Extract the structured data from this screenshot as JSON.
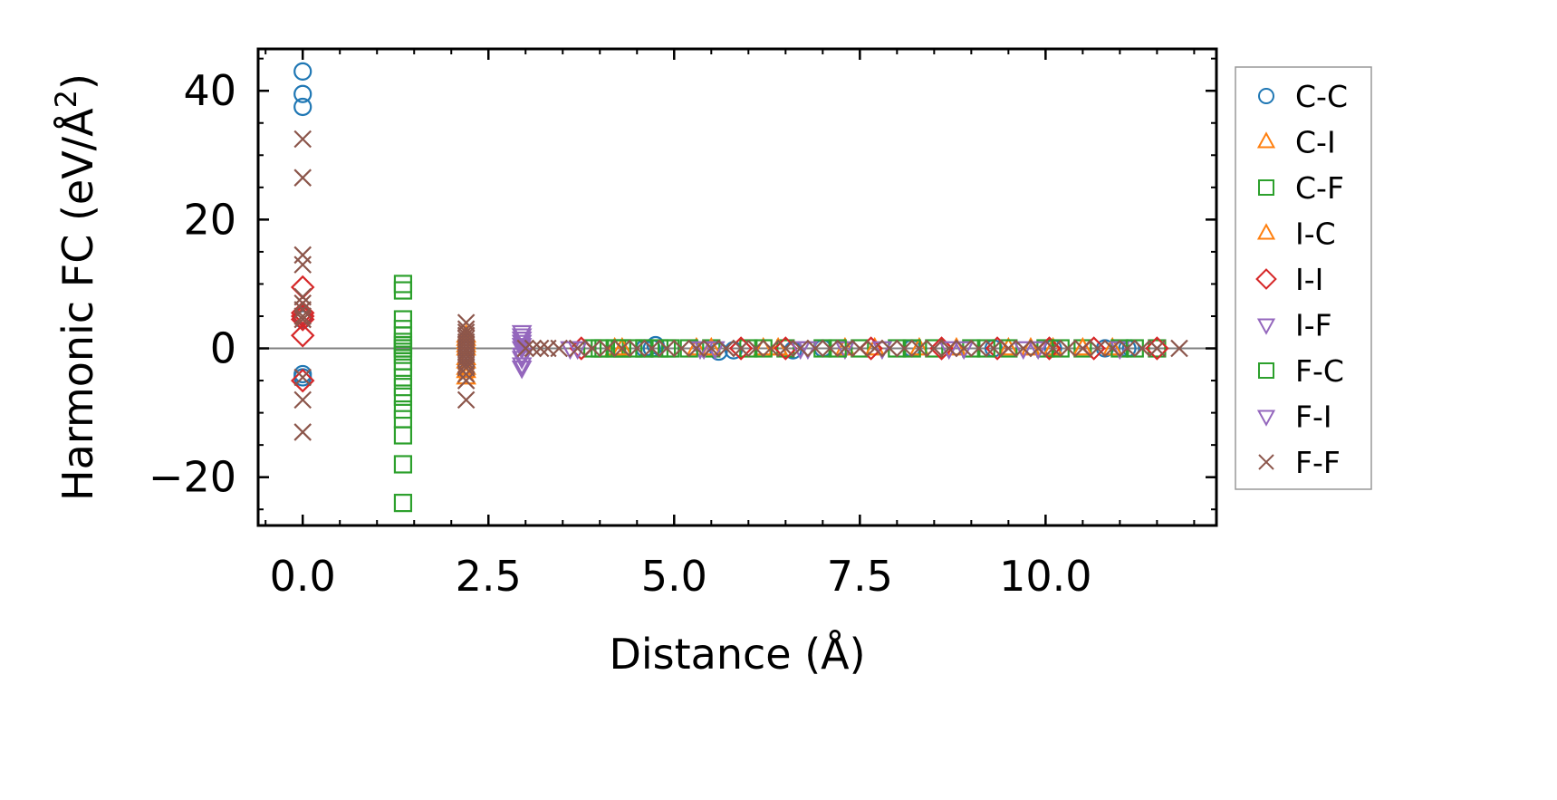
{
  "chart_data": {
    "type": "scatter",
    "xlabel": "Distance (Å)",
    "ylabel": "Harmonic FC (eV/Å",
    "ylabel_sup": "2",
    "ylabel_close": ")",
    "xlim": [
      -0.6,
      12.3
    ],
    "ylim": [
      -27.5,
      46.5
    ],
    "x_ticks": [
      {
        "value": 0.0,
        "label": "0.0"
      },
      {
        "value": 2.5,
        "label": "2.5"
      },
      {
        "value": 5.0,
        "label": "5.0"
      },
      {
        "value": 7.5,
        "label": "7.5"
      },
      {
        "value": 10.0,
        "label": "10.0"
      }
    ],
    "y_ticks": [
      {
        "value": -20,
        "label": "−20"
      },
      {
        "value": 0,
        "label": "0"
      },
      {
        "value": 20,
        "label": "20"
      },
      {
        "value": 40,
        "label": "40"
      }
    ],
    "x_minor_step": 0.5,
    "y_minor_step": 5,
    "zero_line": true,
    "grid": false,
    "legend_position": "right, outside",
    "series": [
      {
        "name": "C-C",
        "marker": "circle",
        "color": "#1f77b4",
        "filled": false,
        "x": [
          0,
          0,
          0,
          0,
          0,
          0,
          0,
          4.6,
          4.7,
          4.75,
          5.6,
          5.8,
          6.6,
          7.0,
          8.2,
          9.3,
          10.1,
          10.8,
          11.1,
          11.15
        ],
        "y": [
          43,
          39.5,
          37.5,
          4.5,
          5,
          -4.5,
          -4,
          0,
          0,
          0.5,
          -0.5,
          -0.3,
          -0.3,
          0,
          0,
          0,
          0,
          0,
          0,
          0
        ]
      },
      {
        "name": "C-I",
        "marker": "triangle-up",
        "color": "#ff7f0e",
        "filled": false,
        "x": [
          2.2,
          2.2,
          2.2,
          2.2,
          2.2,
          2.2,
          4.2,
          5.3,
          6.2,
          7.3,
          8.3,
          9.5,
          10.1,
          10.9
        ],
        "y": [
          -4.5,
          -3,
          -1.5,
          0,
          1,
          2,
          0,
          0,
          0,
          0,
          0,
          0,
          0,
          0
        ]
      },
      {
        "name": "C-F",
        "marker": "square",
        "color": "#2ca02c",
        "filled": false,
        "x": [
          1.35,
          1.35,
          1.35,
          1.35,
          1.35,
          1.35,
          1.35,
          1.35,
          1.35,
          1.35,
          1.35,
          1.35,
          1.35,
          1.35,
          1.35,
          1.35,
          1.35,
          1.35,
          1.35,
          1.35,
          3.9,
          4.05,
          4.2,
          4.3,
          4.45,
          4.6,
          4.8,
          4.95,
          5.5,
          6.0,
          6.5,
          7.0,
          7.5,
          8.0,
          8.5,
          9.0,
          9.5,
          10.0,
          10.5,
          11.0,
          11.5
        ],
        "y": [
          -24,
          -18,
          -13.5,
          -11,
          -9.5,
          -7.5,
          -6,
          -4.5,
          -3,
          -2,
          -1,
          0,
          1,
          2,
          3,
          4.5,
          9,
          10,
          0,
          0.5,
          0,
          0,
          0,
          0,
          0,
          0,
          0,
          0,
          0,
          0,
          0,
          0,
          0,
          0,
          0,
          0,
          0,
          0,
          0,
          0,
          0
        ]
      },
      {
        "name": "I-C",
        "marker": "triangle-up",
        "color": "#ff7f0e",
        "filled": false,
        "x": [
          2.2,
          2.2,
          2.2,
          2.2,
          4.3,
          5.5,
          6.4,
          7.7,
          8.8,
          9.8,
          10.5
        ],
        "y": [
          -3.5,
          -2,
          0.5,
          1.5,
          0,
          0,
          0,
          0,
          0,
          0,
          0
        ]
      },
      {
        "name": "I-I",
        "marker": "diamond",
        "color": "#d62728",
        "filled": false,
        "x": [
          0,
          0,
          0,
          0,
          0,
          0,
          3.75,
          5.9,
          6.5,
          7.65,
          8.6,
          9.35,
          10.05,
          10.65,
          11.5
        ],
        "y": [
          9.5,
          5.5,
          5,
          4.5,
          2,
          -5,
          0,
          0,
          0,
          0,
          0,
          0,
          0,
          0,
          0
        ]
      },
      {
        "name": "I-F",
        "marker": "triangle-down",
        "color": "#9467bd",
        "filled": false,
        "x": [
          2.95,
          2.95,
          2.95,
          2.95,
          2.95,
          3.6,
          5.35,
          5.55,
          6.7,
          7.3,
          8.7,
          9.7,
          11.0
        ],
        "y": [
          -3,
          -1.5,
          0,
          1,
          2,
          0,
          0,
          0,
          0,
          0,
          0,
          0,
          0
        ]
      },
      {
        "name": "F-C",
        "marker": "square",
        "color": "#2ca02c",
        "filled": false,
        "x": [
          4.0,
          4.3,
          4.6,
          4.9,
          5.2,
          6.2,
          7.2,
          8.2,
          9.2,
          10.2,
          11.2
        ],
        "y": [
          0,
          0,
          0,
          0,
          0,
          0,
          0,
          0,
          0,
          0,
          0
        ]
      },
      {
        "name": "F-I",
        "marker": "triangle-down",
        "color": "#9467bd",
        "filled": false,
        "x": [
          2.95,
          2.95,
          2.95,
          2.95,
          2.95,
          3.7,
          5.4,
          6.8,
          7.8,
          8.9,
          9.9
        ],
        "y": [
          -2.5,
          -1,
          0.5,
          1.5,
          2.5,
          0,
          0,
          0,
          0,
          0,
          0
        ]
      },
      {
        "name": "F-F",
        "marker": "x",
        "color": "#8c564b",
        "filled": false,
        "x": [
          0,
          0,
          0,
          0,
          0,
          0,
          0,
          0,
          0,
          0,
          0,
          0,
          2.2,
          2.2,
          2.2,
          2.2,
          2.2,
          2.2,
          2.2,
          2.2,
          2.2,
          2.2,
          2.2,
          2.2,
          2.2,
          2.2,
          2.2,
          2.2,
          2.2,
          3.0,
          3.1,
          3.2,
          3.3,
          3.45,
          3.7,
          3.9,
          4.1,
          4.3,
          4.5,
          4.7,
          4.9,
          5.1,
          5.3,
          5.5,
          5.7,
          5.9,
          6.1,
          6.3,
          6.5,
          6.7,
          6.9,
          7.1,
          7.3,
          7.5,
          7.7,
          7.9,
          8.1,
          8.3,
          8.5,
          8.7,
          8.9,
          9.1,
          9.3,
          9.5,
          9.7,
          9.9,
          10.1,
          10.3,
          10.5,
          10.7,
          10.9,
          11.1,
          11.3,
          11.5,
          11.8
        ],
        "y": [
          32.5,
          26.5,
          14.5,
          13,
          8,
          7,
          6,
          5,
          4.5,
          -4.5,
          -8,
          -13,
          4,
          3,
          2.5,
          2,
          1.5,
          1,
          0.5,
          0,
          -0.5,
          -1,
          -1.5,
          -2,
          -2.5,
          -3,
          -4,
          -5,
          -8,
          0,
          0,
          0,
          0,
          0,
          0,
          0,
          0,
          0,
          0,
          0,
          0,
          0,
          0,
          0,
          0,
          0,
          0,
          0,
          0,
          0,
          0,
          0,
          0,
          0,
          0,
          0,
          0,
          0,
          0,
          0,
          0,
          0,
          0,
          0,
          0,
          0,
          0,
          0,
          0,
          0,
          0,
          0,
          0,
          0,
          0
        ]
      }
    ]
  }
}
